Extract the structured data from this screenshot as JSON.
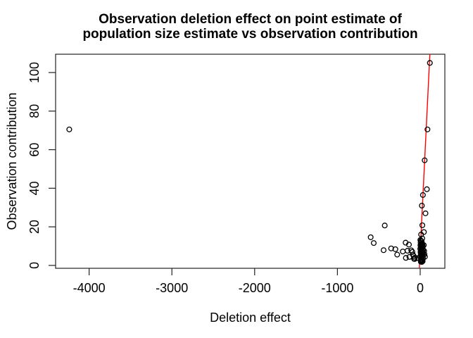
{
  "chart_data": {
    "type": "scatter",
    "title": "Observation deletion effect on point estimate of population size estimate vs observation contribution",
    "title_lines": [
      "Observation deletion effect on point estimate of",
      "population size estimate vs observation contribution"
    ],
    "xlabel": "Deletion effect",
    "ylabel": "Observation contribution",
    "x_ticks": [
      -4000,
      -3000,
      -2000,
      -1000,
      0
    ],
    "y_ticks": [
      0,
      20,
      40,
      60,
      80,
      100
    ],
    "xlim": [
      -4405,
      298
    ],
    "ylim": [
      -1.5,
      109.5
    ],
    "grid": false,
    "legend": "none",
    "point_style": "open-circle",
    "point_color": "#000000",
    "fit_line": {
      "x1": -10,
      "y1": -1.5,
      "x2": 117,
      "y2": 109.5,
      "color": "#FF0000"
    },
    "points": [
      [
        -4240,
        70.5
      ],
      [
        117,
        105
      ],
      [
        88,
        70.5
      ],
      [
        54,
        54.5
      ],
      [
        81,
        39.5
      ],
      [
        33,
        36.5
      ],
      [
        20,
        31
      ],
      [
        64,
        27
      ],
      [
        26,
        20.8
      ],
      [
        45,
        17.3
      ],
      [
        11,
        16
      ],
      [
        25,
        14
      ],
      [
        -598,
        14.6
      ],
      [
        -561,
        11.6
      ],
      [
        -428,
        20.7
      ],
      [
        -442,
        7.9
      ],
      [
        -351,
        8.8
      ],
      [
        -300,
        8.4
      ],
      [
        -278,
        5.6
      ],
      [
        -210,
        7.2
      ],
      [
        -176,
        11.8
      ],
      [
        -153,
        7.6
      ],
      [
        -136,
        10.8
      ],
      [
        -173,
        3.9
      ],
      [
        -130,
        4.4
      ],
      [
        -108,
        7.8
      ],
      [
        -94,
        7.0
      ],
      [
        -88,
        5.6
      ],
      [
        -79,
        4.9
      ],
      [
        -74,
        3.4
      ],
      [
        -68,
        3.3
      ],
      [
        -65,
        4.0
      ],
      [
        -31,
        3.8
      ],
      [
        2,
        13.2
      ],
      [
        10,
        12.8
      ],
      [
        18,
        12.4
      ],
      [
        5,
        11.8
      ],
      [
        22,
        11.5
      ],
      [
        13,
        11
      ],
      [
        28,
        10.8
      ],
      [
        3,
        10.4
      ],
      [
        16,
        10
      ],
      [
        32,
        9.7
      ],
      [
        8,
        9.4
      ],
      [
        24,
        9
      ],
      [
        1,
        8.6
      ],
      [
        19,
        8.3
      ],
      [
        36,
        8
      ],
      [
        11,
        7.7
      ],
      [
        27,
        7.4
      ],
      [
        4,
        7
      ],
      [
        15,
        6.7
      ],
      [
        33,
        6.4
      ],
      [
        7,
        6
      ],
      [
        21,
        5.7
      ],
      [
        40,
        5.4
      ],
      [
        13,
        5
      ],
      [
        29,
        4.7
      ],
      [
        2,
        4.4
      ],
      [
        17,
        4
      ],
      [
        35,
        3.7
      ],
      [
        9,
        3.4
      ],
      [
        24,
        3
      ],
      [
        6,
        2.7
      ],
      [
        14,
        2.4
      ],
      [
        44,
        10.5
      ],
      [
        48,
        7.5
      ],
      [
        52,
        5.8
      ],
      [
        58,
        4.5
      ],
      [
        30,
        2.2
      ],
      [
        20,
        1.8
      ],
      [
        8,
        1.9
      ]
    ]
  }
}
